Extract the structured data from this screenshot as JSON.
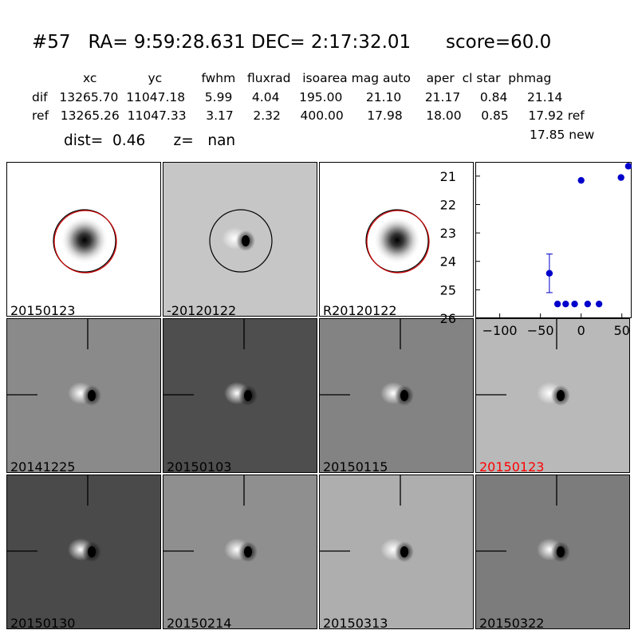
{
  "header": {
    "title": "#57   RA= 9:59:28.631 DEC= 2:17:32.01      score=60.0",
    "columns": "xc             yc          fwhm   fluxrad   isoarea mag auto    aper  cl star  phmag",
    "dif_row": "dif   13265.70  11047.18     5.99     4.04     195.00      21.10      21.17     0.84     21.14",
    "ref_row": "ref   13265.26  11047.33     3.17     2.32     400.00      17.98      18.00     0.85     17.92 ref",
    "new_mag": "17.85 new",
    "dist_line": "dist=  0.46      z=   nan"
  },
  "panels": [
    {
      "label": "20150123",
      "style": "star"
    },
    {
      "label": "-20120122",
      "style": "diff-circle"
    },
    {
      "label": "R20120122",
      "style": "star"
    },
    {
      "label": "20141225",
      "style": "diff",
      "bg": "#8a8a8a"
    },
    {
      "label": "20150103",
      "style": "diff",
      "bg": "#4e4e4e"
    },
    {
      "label": "20150115",
      "style": "diff",
      "bg": "#838383"
    },
    {
      "label": "20150123",
      "style": "diff",
      "bg": "#b9b9b9",
      "highlight": true
    },
    {
      "label": "20150130",
      "style": "diff",
      "bg": "#4a4a4a"
    },
    {
      "label": "20150214",
      "style": "diff",
      "bg": "#8f8f8f"
    },
    {
      "label": "20150313",
      "style": "diff",
      "bg": "#aeaeae"
    },
    {
      "label": "20150322",
      "style": "diff",
      "bg": "#7c7c7c"
    }
  ],
  "colors": {
    "point": "#0000cc",
    "highlight_label": "#ff0000",
    "ring_red": "#cc0000"
  },
  "chart_data": {
    "type": "scatter",
    "xlim": [
      -130,
      62
    ],
    "ylim": [
      26,
      20.5
    ],
    "y_inverted": true,
    "xticks": [
      -100,
      -50,
      0,
      50
    ],
    "yticks": [
      21,
      22,
      23,
      24,
      25,
      26
    ],
    "tick_labels_x": [
      "−100",
      "−50",
      "0",
      "50"
    ],
    "tick_labels_y": [
      "21",
      "22",
      "23",
      "24",
      "25",
      "26"
    ],
    "points": [
      {
        "x": -39,
        "y": 24.42,
        "err": 0.68
      },
      {
        "x": -29,
        "y": 25.5
      },
      {
        "x": -19,
        "y": 25.5
      },
      {
        "x": -8,
        "y": 25.5
      },
      {
        "x": 0,
        "y": 21.15
      },
      {
        "x": 8,
        "y": 25.5
      },
      {
        "x": 22,
        "y": 25.5
      },
      {
        "x": 49,
        "y": 21.05
      },
      {
        "x": 58,
        "y": 20.65
      }
    ]
  }
}
